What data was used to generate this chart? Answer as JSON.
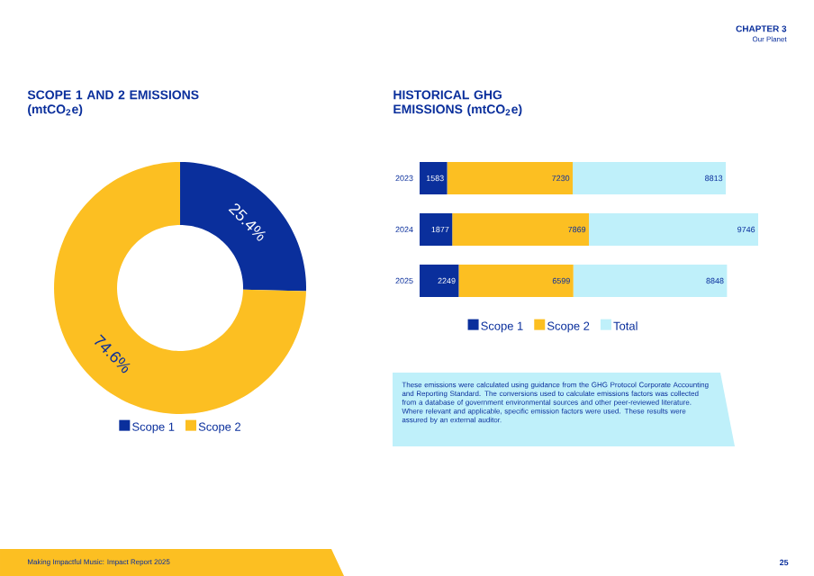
{
  "chart_data": [
    {
      "type": "donut",
      "title": "SCOPE 1 AND 2 EMISSIONS (mtCO$_{2}$e)",
      "categories": [
        "Scope 1",
        "Scope 2"
      ],
      "values": [
        25.4,
        74.6
      ],
      "colors": [
        "#0a2f9c",
        "#fcbf22"
      ],
      "value_labels": [
        "25.4%",
        "74.6%"
      ],
      "legend": "bottom",
      "annotations": [
        "CHAPTER 3",
        "Our Planet",
        "Making Impactful Music: Impact Report 2025",
        "25"
      ]
    },
    {
      "type": "bar",
      "orientation": "horizontal",
      "stacked": true,
      "title": "HISTORICAL GHG EMISSIONS (mtCO$_{2}$e)",
      "categories": [
        "2023",
        "2024",
        "2025"
      ],
      "series": [
        {
          "name": "Scope 1",
          "color": "#0a2f9c",
          "values": [
            1583,
            1877,
            2249
          ]
        },
        {
          "name": "Scope 2",
          "color": "#fcbf22",
          "values": [
            7230,
            7869,
            6599
          ]
        },
        {
          "name": "Total",
          "color": "#bff0fa",
          "values": [
            8813,
            9746,
            8848
          ]
        }
      ],
      "data_labels": true,
      "legend": "bottom",
      "annotations": [
        "These emissions were calculated using guidance from the GHG Protocol Corporate Accounting and Reporting Standard. The conversions used to calculate emissions factors was collected from a database of government environmental sources and other peer-reviewed literature. Where relevant and applicable, specific emission factors were used. These results were assured by an external auditor."
      ]
    }
  ]
}
